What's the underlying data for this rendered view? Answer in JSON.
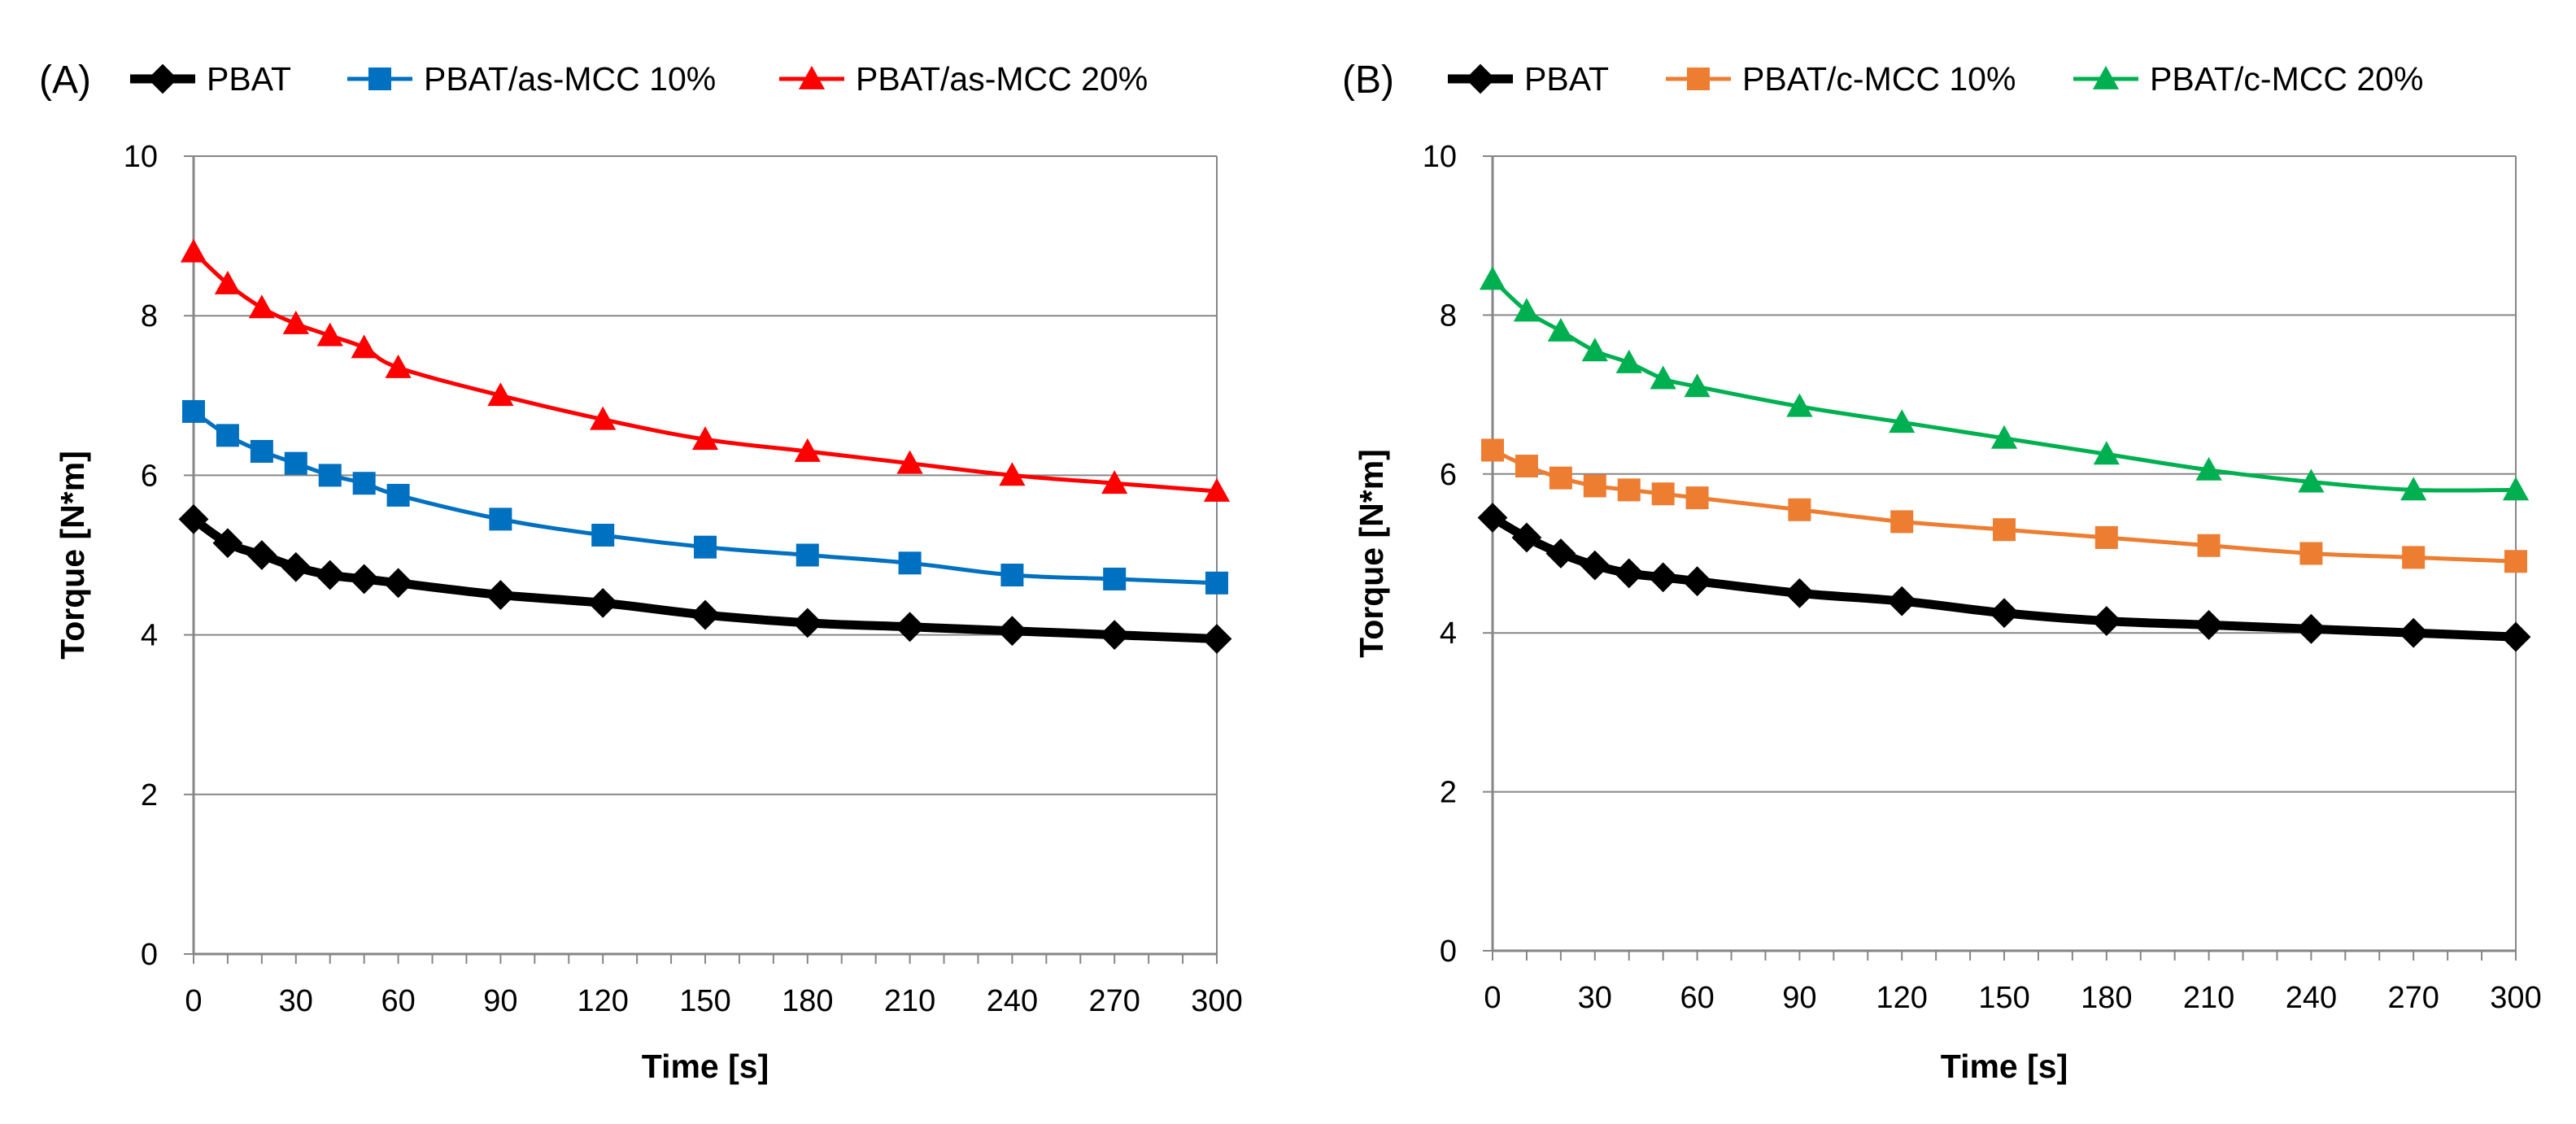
{
  "chart_data": [
    {
      "type": "line",
      "panel_label": "(A)",
      "title": "",
      "xlabel": "Time [s]",
      "ylabel": "Torque [N*m]",
      "xlim": [
        0,
        300
      ],
      "ylim": [
        0,
        10
      ],
      "x_ticks": [
        "0",
        "30",
        "60",
        "90",
        "120",
        "150",
        "180",
        "210",
        "240",
        "270",
        "300"
      ],
      "y_ticks": [
        "0",
        "2",
        "4",
        "6",
        "8",
        "10"
      ],
      "grid": "horizontal",
      "legend_position": "top",
      "x": [
        0,
        10,
        20,
        30,
        40,
        50,
        60,
        90,
        120,
        150,
        180,
        210,
        240,
        270,
        300
      ],
      "series": [
        {
          "name": "PBAT",
          "color": "#000000",
          "marker": "diamond",
          "values": [
            5.45,
            5.15,
            5.0,
            4.85,
            4.75,
            4.7,
            4.65,
            4.5,
            4.4,
            4.25,
            4.15,
            4.1,
            4.05,
            4.0,
            3.95
          ]
        },
        {
          "name": "PBAT/as-MCC 10%",
          "color": "#0070C0",
          "marker": "square",
          "values": [
            6.8,
            6.5,
            6.3,
            6.15,
            6.0,
            5.9,
            5.75,
            5.45,
            5.25,
            5.1,
            5.0,
            4.9,
            4.75,
            4.7,
            4.65
          ]
        },
        {
          "name": "PBAT/as-MCC 20%",
          "color": "#FF0000",
          "marker": "triangle",
          "values": [
            8.8,
            8.4,
            8.1,
            7.9,
            7.75,
            7.6,
            7.35,
            7.0,
            6.7,
            6.45,
            6.3,
            6.15,
            6.0,
            5.9,
            5.8
          ]
        }
      ]
    },
    {
      "type": "line",
      "panel_label": "(B)",
      "title": "",
      "xlabel": "Time [s]",
      "ylabel": "Torque [N*m]",
      "xlim": [
        0,
        300
      ],
      "ylim": [
        0,
        10
      ],
      "x_ticks": [
        "0",
        "30",
        "60",
        "90",
        "120",
        "150",
        "180",
        "210",
        "240",
        "270",
        "300"
      ],
      "y_ticks": [
        "0",
        "2",
        "4",
        "6",
        "8",
        "10"
      ],
      "grid": "horizontal",
      "legend_position": "top",
      "x": [
        0,
        10,
        20,
        30,
        40,
        50,
        60,
        90,
        120,
        150,
        180,
        210,
        240,
        270,
        300
      ],
      "series": [
        {
          "name": "PBAT",
          "color": "#000000",
          "marker": "diamond",
          "values": [
            5.45,
            5.2,
            5.0,
            4.85,
            4.75,
            4.7,
            4.65,
            4.5,
            4.4,
            4.25,
            4.15,
            4.1,
            4.05,
            4.0,
            3.95
          ]
        },
        {
          "name": "PBAT/c-MCC 10%",
          "color": "#ED7D31",
          "marker": "square",
          "values": [
            6.3,
            6.1,
            5.95,
            5.85,
            5.8,
            5.75,
            5.7,
            5.55,
            5.4,
            5.3,
            5.2,
            5.1,
            5.0,
            4.95,
            4.9
          ]
        },
        {
          "name": "PBAT/c-MCC 20%",
          "color": "#00B050",
          "marker": "triangle",
          "values": [
            8.45,
            8.05,
            7.8,
            7.55,
            7.4,
            7.2,
            7.1,
            6.85,
            6.65,
            6.45,
            6.25,
            6.05,
            5.9,
            5.8,
            5.8
          ]
        }
      ]
    }
  ]
}
